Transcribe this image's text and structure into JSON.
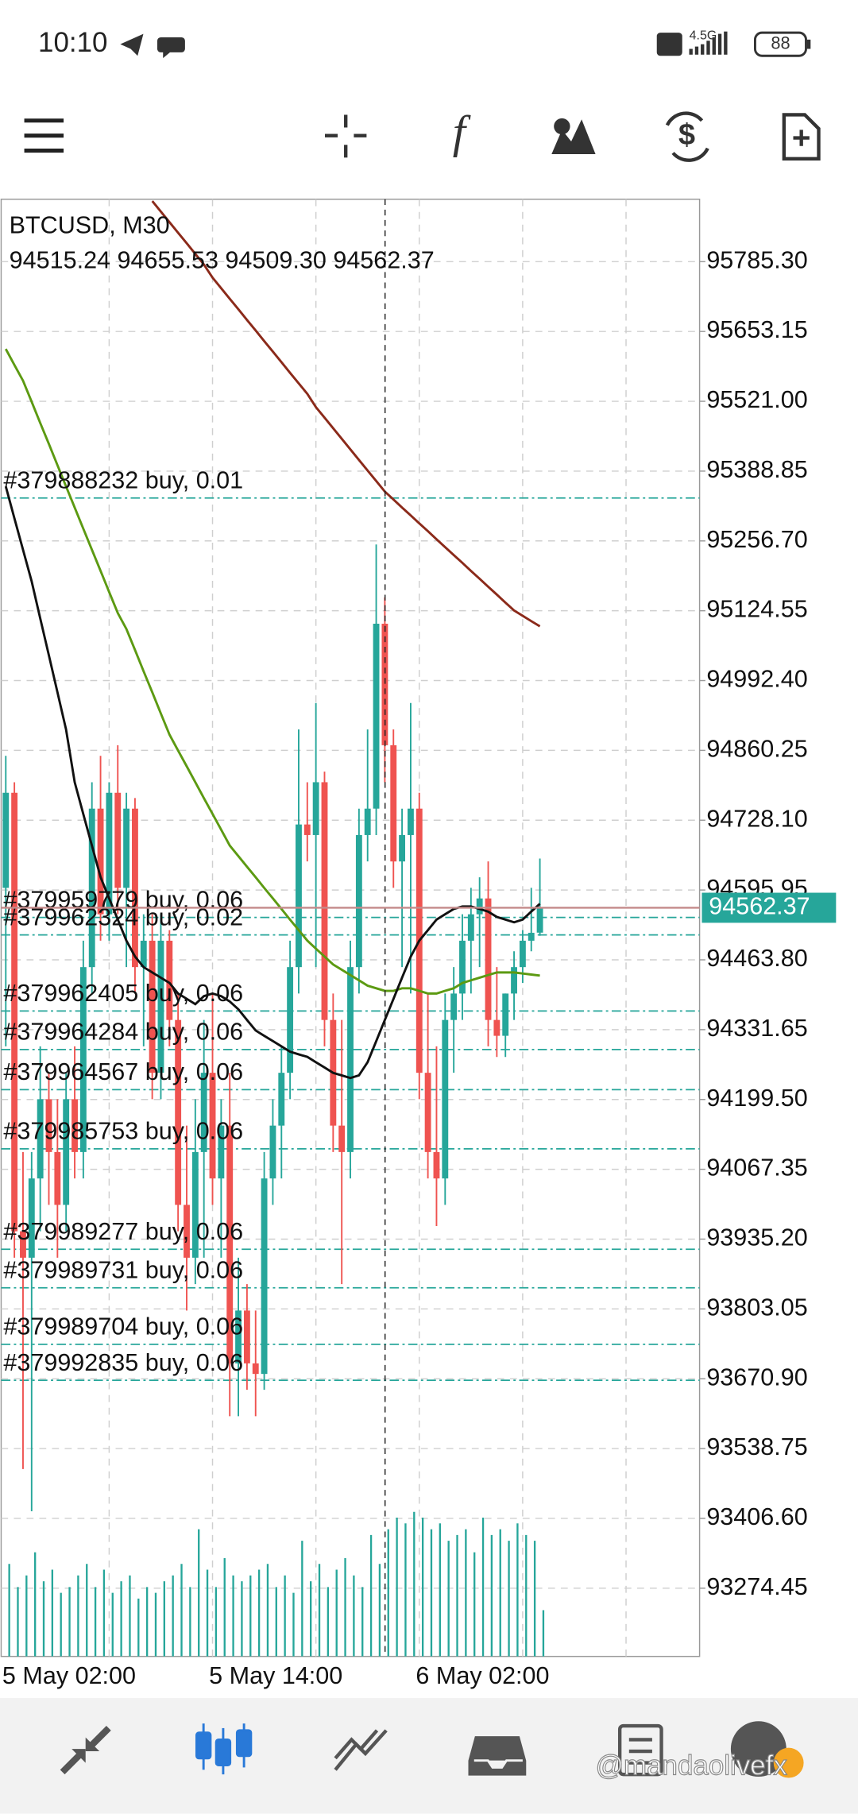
{
  "status_bar": {
    "time": "10:10",
    "network": "4.5G",
    "battery": "88"
  },
  "chart_data": {
    "type": "candlestick",
    "symbol": "BTCUSD, M30",
    "ohlc_text": "94515.24 94655.53 94509.30 94562.37",
    "categories": [
      "5 May 02:00",
      null,
      null,
      null,
      null,
      null,
      null,
      null,
      null,
      null,
      null,
      null,
      null,
      null,
      null,
      null,
      null,
      null,
      null,
      null,
      null,
      null,
      null,
      null,
      "5 May 14:00",
      null,
      null,
      null,
      null,
      null,
      null,
      null,
      null,
      null,
      null,
      null,
      null,
      null,
      null,
      null,
      null,
      null,
      null,
      null,
      null,
      null,
      null,
      null,
      "6 May 02:00",
      null,
      null,
      null,
      null,
      null,
      null,
      null,
      null,
      null,
      null,
      null,
      null,
      null,
      null
    ],
    "open": [
      94600,
      94780,
      93950,
      93900,
      94050,
      94200,
      94100,
      94000,
      94200,
      94100,
      94450,
      94750,
      94550,
      94780,
      94600,
      94750,
      94450,
      94500,
      94250,
      94500,
      94350,
      94000,
      93900,
      94100,
      94250,
      94050,
      94150,
      93700,
      93800,
      93700,
      93680,
      94050,
      94150,
      94250,
      94450,
      94720,
      94700,
      94800,
      94350,
      94150,
      94100,
      94450,
      94700,
      94750,
      95100,
      94870,
      94650,
      94700,
      94750,
      94250,
      94100,
      94050,
      94350,
      94400,
      94500,
      94550,
      94580,
      94350,
      94320,
      94400,
      94450,
      94500,
      94515.24
    ],
    "high": [
      94850,
      94800,
      94100,
      94100,
      94300,
      94250,
      94200,
      94250,
      94300,
      94500,
      94800,
      94850,
      94800,
      94870,
      94780,
      94770,
      94550,
      94550,
      94550,
      94520,
      94400,
      94150,
      94200,
      94350,
      94400,
      94200,
      94250,
      93900,
      93850,
      93800,
      94100,
      94200,
      94300,
      94500,
      94900,
      94800,
      94950,
      94820,
      94400,
      94350,
      94500,
      94750,
      94900,
      95250,
      95150,
      94900,
      94750,
      94950,
      94780,
      94400,
      94300,
      94400,
      94450,
      94550,
      94600,
      94620,
      94650,
      94450,
      94400,
      94480,
      94520,
      94600,
      94655.53
    ],
    "low": [
      94300,
      93900,
      93500,
      93420,
      93950,
      94000,
      93900,
      93950,
      94050,
      94050,
      94400,
      94500,
      94500,
      94550,
      94450,
      94400,
      94300,
      94200,
      94200,
      94300,
      93950,
      93800,
      93850,
      93900,
      94000,
      93900,
      93600,
      93600,
      93650,
      93600,
      93650,
      94000,
      94050,
      94200,
      94400,
      94650,
      94450,
      94300,
      94100,
      93850,
      94050,
      94400,
      94650,
      94700,
      94800,
      94600,
      94450,
      94400,
      94200,
      94050,
      93960,
      94000,
      94250,
      94350,
      94400,
      94450,
      94300,
      94280,
      94280,
      94350,
      94420,
      94480,
      94509.3
    ],
    "close": [
      94780,
      93950,
      93900,
      94050,
      94200,
      94100,
      94000,
      94200,
      94100,
      94450,
      94750,
      94550,
      94780,
      94600,
      94750,
      94450,
      94500,
      94250,
      94500,
      94350,
      94000,
      93900,
      94100,
      94250,
      94050,
      94150,
      93700,
      93800,
      93700,
      93680,
      94050,
      94150,
      94250,
      94450,
      94720,
      94700,
      94800,
      94350,
      94150,
      94100,
      94450,
      94700,
      94750,
      95100,
      94870,
      94650,
      94700,
      94750,
      94250,
      94100,
      94050,
      94350,
      94400,
      94500,
      94550,
      94580,
      94350,
      94320,
      94400,
      94450,
      94500,
      94515,
      94562.37
    ],
    "volumes": [
      80,
      60,
      70,
      90,
      65,
      75,
      55,
      60,
      70,
      80,
      60,
      75,
      55,
      65,
      70,
      50,
      60,
      55,
      65,
      70,
      80,
      60,
      110,
      75,
      60,
      85,
      70,
      65,
      70,
      75,
      80,
      60,
      70,
      55,
      100,
      65,
      80,
      60,
      75,
      85,
      70,
      60,
      105,
      80,
      110,
      120,
      115,
      125,
      120,
      110,
      115,
      100,
      105,
      110,
      90,
      120,
      105,
      110,
      100,
      115,
      105,
      100,
      40
    ],
    "series": [
      {
        "color": "#8b2a1a",
        "values": [
          null,
          null,
          null,
          null,
          null,
          null,
          null,
          null,
          null,
          null,
          null,
          null,
          null,
          null,
          null,
          null,
          null,
          95900,
          95880,
          95860,
          95840,
          95820,
          95800,
          95780,
          95755,
          95735,
          95715,
          95695,
          95675,
          95655,
          95635,
          95615,
          95595,
          95575,
          95555,
          95535,
          95510,
          95490,
          95470,
          95450,
          95430,
          95410,
          95390,
          95370,
          95350,
          95335,
          95320,
          95305,
          95290,
          95275,
          95260,
          95245,
          95230,
          95215,
          95200,
          95185,
          95170,
          95155,
          95140,
          95125,
          95115,
          95105,
          95095
        ]
      },
      {
        "color": "#5c9a12",
        "values": [
          95620,
          95590,
          95560,
          95520,
          95480,
          95440,
          95400,
          95360,
          95320,
          95280,
          95240,
          95200,
          95160,
          95120,
          95090,
          95050,
          95010,
          94970,
          94930,
          94890,
          94860,
          94830,
          94800,
          94770,
          94740,
          94710,
          94680,
          94660,
          94640,
          94620,
          94600,
          94580,
          94560,
          94540,
          94520,
          94500,
          94485,
          94470,
          94455,
          94445,
          94435,
          94425,
          94415,
          94410,
          94405,
          94405,
          94410,
          94410,
          94405,
          94400,
          94400,
          94405,
          94410,
          94420,
          94425,
          94430,
          94435,
          94440,
          94440,
          94440,
          94438,
          94436,
          94434
        ]
      },
      {
        "color": "#111111",
        "values": [
          95360,
          95300,
          95240,
          95180,
          95110,
          95040,
          94970,
          94900,
          94800,
          94740,
          94680,
          94620,
          94580,
          94540,
          94500,
          94470,
          94450,
          94440,
          94430,
          94420,
          94400,
          94390,
          94380,
          94395,
          94400,
          94395,
          94385,
          94370,
          94350,
          94330,
          94320,
          94310,
          94300,
          94290,
          94285,
          94280,
          94270,
          94260,
          94250,
          94245,
          94240,
          94245,
          94270,
          94310,
          94350,
          94390,
          94430,
          94470,
          94500,
          94520,
          94540,
          94550,
          94560,
          94565,
          94565,
          94560,
          94555,
          94545,
          94540,
          94535,
          94540,
          94555,
          94570
        ]
      }
    ],
    "orders": [
      {
        "label": "#379888232 buy, 0.01",
        "price": 95338
      },
      {
        "label": "#379959779 buy, 0.06",
        "price": 94544
      },
      {
        "label": "#379962324 buy, 0.02",
        "price": 94511
      },
      {
        "label": "#379962405 buy, 0.06",
        "price": 94367
      },
      {
        "label": "#379964284 buy, 0.06",
        "price": 94294
      },
      {
        "label": "#379964567 buy, 0.06",
        "price": 94218
      },
      {
        "label": "#379985753 buy, 0.06",
        "price": 94106
      },
      {
        "label": "#379989277 buy, 0.06",
        "price": 93916
      },
      {
        "label": "#379989731 buy, 0.06",
        "price": 93843
      },
      {
        "label": "#379989704 buy, 0.06",
        "price": 93736
      },
      {
        "label": "#379992835 buy, 0.06",
        "price": 93668
      }
    ],
    "current_price": 94562.37,
    "ylim": [
      93145.3,
      95903.5
    ],
    "yticks": [
      {
        "value": 95785.3,
        "label": "95785.30"
      },
      95653.15,
      {
        "value": 95521,
        "label": "95521.00"
      },
      95388.85,
      {
        "value": 95256.7,
        "label": "95256.70"
      },
      95124.55,
      {
        "value": 94992.4,
        "label": "94992.40"
      },
      94860.25,
      {
        "value": 94728.1,
        "label": "94728.10"
      },
      94595.95,
      {
        "value": 94463.8,
        "label": "94463.80"
      },
      94331.65,
      {
        "value": 94199.5,
        "label": "94199.50"
      },
      94067.35,
      {
        "value": 93935.2,
        "label": "93935.20"
      },
      93803.05,
      {
        "value": 93670.9,
        "label": "93670.90"
      },
      93538.75,
      {
        "value": 93406.6,
        "label": "93406.60"
      },
      93274.45
    ],
    "grid": true,
    "up_color": "#26a69a",
    "down_color": "#ef5350"
  },
  "watermark": "@mandaolivefx"
}
